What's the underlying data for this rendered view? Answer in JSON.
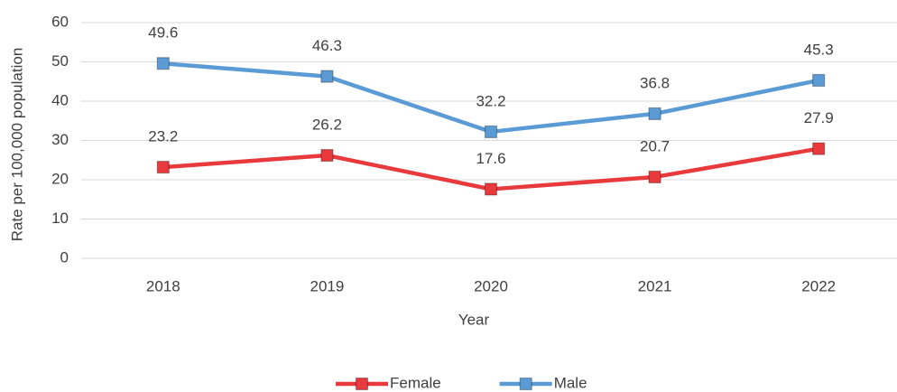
{
  "chart_data": {
    "type": "line",
    "x_label": "Year",
    "y_label": "Rate per 100,000 population",
    "categories": [
      "2018",
      "2019",
      "2020",
      "2021",
      "2022"
    ],
    "series": [
      {
        "name": "Female",
        "color": "#e8393c",
        "values": [
          23.2,
          26.2,
          17.6,
          20.7,
          27.9
        ]
      },
      {
        "name": "Male",
        "color": "#5b9bd5",
        "values": [
          49.6,
          46.3,
          32.2,
          36.8,
          45.3
        ]
      }
    ],
    "ylim": [
      0,
      60
    ],
    "yticks": [
      0,
      10,
      20,
      30,
      40,
      50,
      60
    ],
    "grid": true,
    "legend": "bottom"
  }
}
